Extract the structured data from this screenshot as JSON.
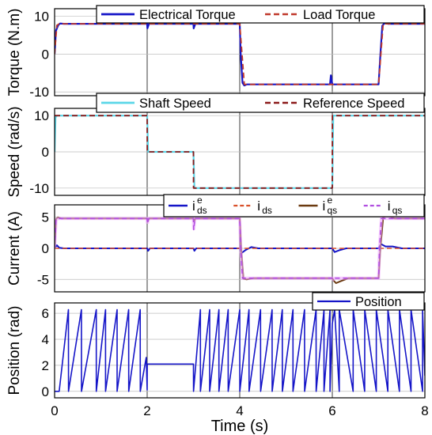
{
  "colors": {
    "electrical_torque": "#1515c8",
    "load_torque": "#c0392b",
    "shaft_speed": "#5bd6e8",
    "reference_speed": "#8b1a1a",
    "ids_e": "#1515c8",
    "ids": "#d9502a",
    "iqs_e": "#6b3a10",
    "iqs": "#b14ee0",
    "iqs_glow": "#f0a8ff",
    "position": "#1515c8"
  },
  "chart_data": [
    {
      "type": "line",
      "ylabel": "Torque (N.m)",
      "xlim": [
        0,
        8
      ],
      "ylim": [
        -11,
        12
      ],
      "yticks": [
        10,
        0,
        -10
      ],
      "grid": "major",
      "legend_placement": "top-right",
      "series": [
        {
          "name": "Electrical Torque",
          "x": [
            0,
            0.03,
            0.08,
            0.12,
            0.2,
            2.0,
            2.005,
            2.04,
            3.0,
            3.005,
            3.04,
            4.0,
            4.02,
            4.06,
            4.1,
            4.15,
            5.95,
            5.97,
            6.0,
            6.03,
            7.0,
            7.04,
            7.08,
            7.13,
            7.2,
            8.0
          ],
          "y": [
            0,
            6.2,
            7.7,
            8.1,
            8.0,
            8.0,
            6.8,
            8.0,
            8.0,
            6.8,
            8.0,
            8.0,
            0,
            -7.6,
            -8.3,
            -8.0,
            -8.0,
            -5.6,
            -8.0,
            -8.0,
            -8.0,
            0,
            7.5,
            8.2,
            8.0,
            8.0
          ]
        },
        {
          "name": "Load Torque",
          "x": [
            0,
            0.05,
            0.1,
            4.0,
            4.1,
            7.0,
            7.1,
            8.0
          ],
          "y": [
            0,
            7.6,
            8.0,
            8.0,
            -8.0,
            -8.0,
            8.0,
            8.0
          ]
        }
      ]
    },
    {
      "type": "line",
      "ylabel": "Speed (rad/s)",
      "xlim": [
        0,
        8
      ],
      "ylim": [
        -12,
        12
      ],
      "yticks": [
        10,
        0,
        -10
      ],
      "grid": "major",
      "legend_placement": "top-right",
      "series": [
        {
          "name": "Shaft Speed",
          "x": [
            0,
            0.02,
            0.05,
            2.0,
            2.02,
            3.0,
            3.02,
            6.0,
            6.02,
            8.0
          ],
          "y": [
            0,
            9.5,
            10,
            10,
            0,
            0,
            -10,
            -10,
            10,
            10
          ]
        },
        {
          "name": "Reference Speed",
          "x": [
            0,
            0.001,
            2.0,
            2.001,
            3.0,
            3.001,
            6.0,
            6.001,
            8.0
          ],
          "y": [
            10,
            10,
            10,
            0,
            0,
            -10,
            -10,
            10,
            10
          ]
        }
      ]
    },
    {
      "type": "line",
      "ylabel": "Current (A)",
      "xlim": [
        0,
        8
      ],
      "ylim": [
        -7,
        7
      ],
      "yticks": [
        5,
        0,
        -5
      ],
      "grid": "major",
      "legend_placement": "top-right",
      "series": [
        {
          "name_main": "i",
          "name_sup": "e",
          "name_sub": "ds",
          "x": [
            0,
            0.05,
            0.1,
            0.2,
            2.0,
            2.02,
            2.06,
            3.0,
            3.02,
            3.06,
            4.0,
            4.05,
            4.12,
            4.25,
            4.4,
            6.0,
            6.05,
            6.15,
            6.3,
            7.0,
            7.05,
            7.15,
            7.3,
            7.5,
            8.0
          ],
          "y": [
            0,
            0.5,
            0.1,
            0,
            0,
            -0.4,
            0,
            0,
            -0.4,
            0,
            0,
            -0.7,
            -0.3,
            0.2,
            0,
            0,
            -0.6,
            -0.3,
            0,
            0,
            0.7,
            0.3,
            0.3,
            0,
            0
          ]
        },
        {
          "name_main": "i",
          "name_sub": "ds",
          "x": [
            0,
            8
          ],
          "y": [
            0,
            0
          ]
        },
        {
          "name_main": "i",
          "name_sup": "e",
          "name_sub": "qs",
          "x": [
            0,
            0.03,
            0.07,
            0.15,
            2.0,
            2.01,
            2.04,
            3.0,
            3.01,
            3.04,
            4.0,
            4.03,
            4.08,
            4.15,
            4.3,
            6.0,
            6.03,
            6.08,
            6.18,
            6.35,
            7.0,
            7.04,
            7.1,
            7.2,
            7.35,
            8.0
          ],
          "y": [
            0,
            4.7,
            5.0,
            4.8,
            4.8,
            4.3,
            4.8,
            4.8,
            4.3,
            4.8,
            4.8,
            0,
            -4.9,
            -5.0,
            -4.8,
            -4.8,
            -5.2,
            -5.6,
            -5.3,
            -4.8,
            -4.8,
            0,
            5.0,
            5.3,
            4.8,
            4.8
          ]
        },
        {
          "name_main": "i",
          "name_sub": "qs",
          "x": [
            0,
            0.03,
            0.07,
            2.0,
            2.005,
            2.03,
            3.0,
            3.005,
            3.03,
            4.0,
            4.02,
            4.06,
            4.12,
            6.0,
            6.02,
            6.06,
            6.12,
            7.0,
            7.02,
            7.06,
            7.12,
            8.0
          ],
          "y": [
            0,
            4.6,
            4.8,
            4.8,
            4.0,
            4.8,
            4.8,
            3.0,
            4.8,
            4.8,
            0,
            -4.8,
            -4.8,
            -4.8,
            -5.0,
            -4.8,
            -4.8,
            -4.8,
            0,
            4.8,
            4.8,
            4.8
          ]
        }
      ]
    },
    {
      "type": "line",
      "ylabel": "Position (rad)",
      "xlabel": "Time (s)",
      "xlim": [
        0,
        8
      ],
      "ylim": [
        -0.5,
        6.8
      ],
      "yticks": [
        6,
        4,
        2,
        0
      ],
      "xticks": [
        0,
        2,
        4,
        6,
        8
      ],
      "grid": "major",
      "legend_placement": "top-right",
      "series": [
        {
          "name": "Position",
          "x": [
            0,
            0.1,
            0.3,
            0.301,
            0.58,
            0.581,
            0.9,
            0.901,
            1.1,
            1.101,
            1.35,
            1.351,
            1.6,
            1.601,
            1.85,
            1.851,
            1.98,
            2.0,
            2.001,
            3.0,
            3.001,
            3.15,
            3.151,
            3.35,
            3.351,
            3.55,
            3.551,
            3.75,
            3.751,
            4.0,
            4.001,
            4.2,
            4.201,
            4.45,
            4.451,
            4.7,
            4.701,
            4.92,
            4.921,
            5.15,
            5.151,
            5.4,
            5.401,
            5.65,
            5.651,
            5.82,
            5.821,
            5.95,
            5.951,
            6.0,
            6.05,
            6.15,
            6.151,
            6.45,
            6.451,
            6.7,
            6.701,
            6.95,
            6.951,
            7.2,
            7.201,
            7.45,
            7.451,
            7.7,
            7.701,
            7.95,
            7.951,
            8.0
          ],
          "y": [
            0,
            0,
            6.28,
            0,
            6.28,
            0,
            6.28,
            0,
            6.28,
            0,
            6.28,
            0,
            6.28,
            0,
            6.28,
            0,
            2.6,
            0.1,
            2.1,
            2.1,
            0,
            6.28,
            0,
            6.28,
            0,
            6.28,
            0,
            6.28,
            0,
            6.28,
            0,
            6.28,
            0,
            6.28,
            0,
            6.28,
            0,
            6.28,
            0,
            6.28,
            0,
            6.28,
            0,
            6.28,
            0,
            6.28,
            0,
            6.28,
            0,
            5.2,
            6.28,
            0,
            6.28,
            0,
            6.28,
            0,
            6.28,
            0,
            6.28,
            0,
            6.28,
            0,
            6.28,
            0,
            6.28,
            0,
            6.28,
            1.2
          ]
        }
      ]
    }
  ]
}
